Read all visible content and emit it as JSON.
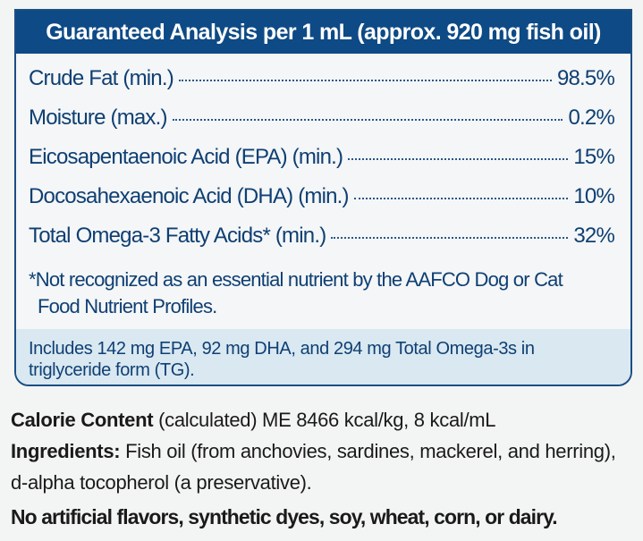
{
  "colors": {
    "header_bg": "#0e4a85",
    "header_text": "#ffffff",
    "label_text": "#0f3f73",
    "panel_border": "#1b4e84",
    "includes_bg": "#d9e8f1",
    "body_text": "#1a1a1a"
  },
  "analysis": {
    "title": "Guaranteed Analysis per 1 mL (approx. 920 mg fish oil)",
    "rows": [
      {
        "label": "Crude Fat (min.)",
        "value": "98.5%"
      },
      {
        "label": "Moisture (max.)",
        "value": "0.2%"
      },
      {
        "label": "Eicosapentaenoic Acid (EPA) (min.)",
        "value": "15%"
      },
      {
        "label": "Docosahexaenoic Acid (DHA) (min.)",
        "value": "10%"
      },
      {
        "label": "Total Omega-3 Fatty Acids* (min.)",
        "value": "32%"
      }
    ],
    "footnote_line1": "*Not recognized as an essential nutrient by the AAFCO Dog or Cat",
    "footnote_line2": "Food Nutrient Profiles.",
    "includes_text": "Includes 142 mg EPA, 92 mg DHA, and 294 mg Total Omega-3s in triglyceride form (TG)."
  },
  "calorie": {
    "label": "Calorie Content",
    "text": " (calculated) ME 8466 kcal/kg, 8 kcal/mL"
  },
  "ingredients": {
    "label": "Ingredients:",
    "text": " Fish oil (from anchovies, sardines, mackerel, and herring), d-alpha tocopherol (a preservative)."
  },
  "claims": {
    "no_artificial": "No artificial flavors, synthetic dyes, soy, wheat, corn, or dairy."
  }
}
